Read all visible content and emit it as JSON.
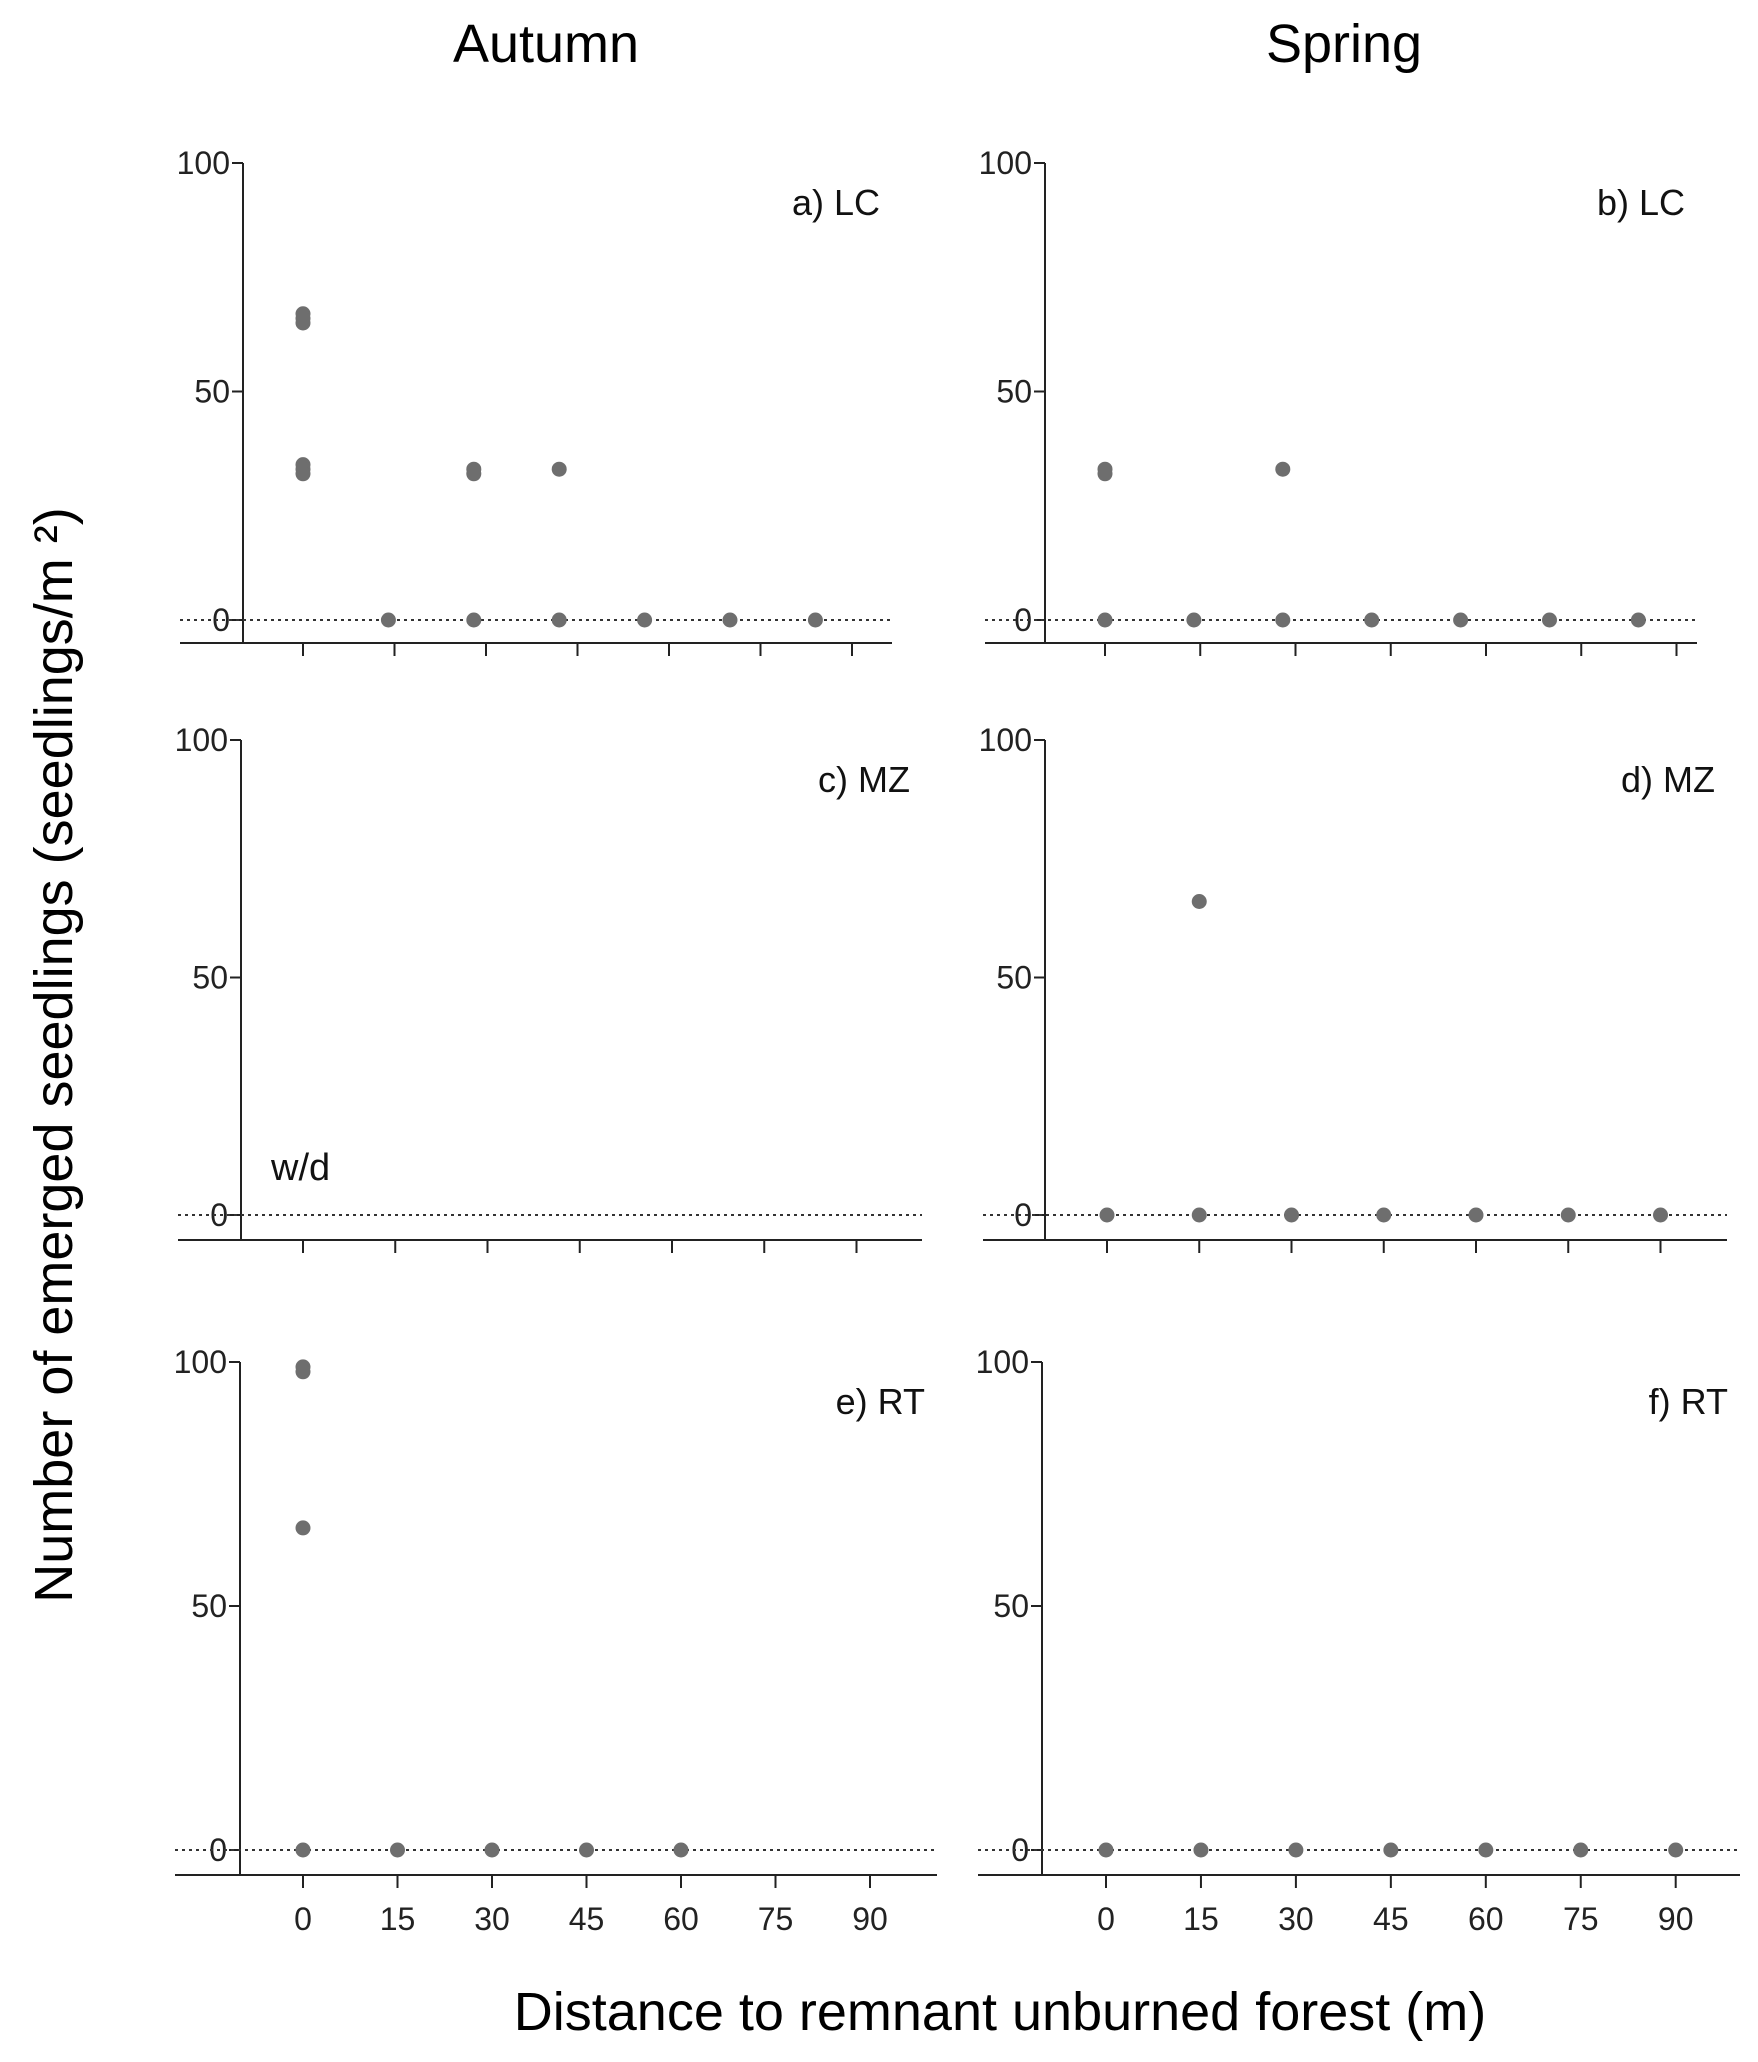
{
  "column_titles": [
    "Autumn",
    "Spring"
  ],
  "ylabel": "Number of emerged seedlings (seedlings/m ²)",
  "xlabel": "Distance to remnant unburned forest (m)",
  "colors": {
    "point": "#6e6e6e",
    "axis": "#222222",
    "zero_line": "#333333"
  },
  "chart_data": [
    {
      "type": "scatter",
      "panel_label": "a) LC",
      "x_ticks": [
        0,
        15,
        30,
        45,
        60,
        75,
        90
      ],
      "show_x_tick_labels": false,
      "y_ticks": [
        0,
        50,
        100
      ],
      "ylim": [
        0,
        100
      ],
      "zero_reference_line": true,
      "points": [
        [
          0,
          67
        ],
        [
          0,
          66
        ],
        [
          0,
          65
        ],
        [
          0,
          34
        ],
        [
          0,
          33
        ],
        [
          0,
          32
        ],
        [
          28,
          33
        ],
        [
          28,
          32
        ],
        [
          42,
          33
        ],
        [
          14,
          0
        ],
        [
          28,
          0
        ],
        [
          42,
          0
        ],
        [
          56,
          0
        ],
        [
          70,
          0
        ],
        [
          84,
          0
        ]
      ]
    },
    {
      "type": "scatter",
      "panel_label": "b) LC",
      "x_ticks": [
        0,
        15,
        30,
        45,
        60,
        75,
        90
      ],
      "show_x_tick_labels": false,
      "y_ticks": [
        0,
        50,
        100
      ],
      "ylim": [
        0,
        100
      ],
      "zero_reference_line": true,
      "points": [
        [
          0,
          33
        ],
        [
          0,
          32
        ],
        [
          28,
          33
        ],
        [
          0,
          0
        ],
        [
          14,
          0
        ],
        [
          28,
          0
        ],
        [
          42,
          0
        ],
        [
          56,
          0
        ],
        [
          70,
          0
        ],
        [
          84,
          0
        ]
      ]
    },
    {
      "type": "scatter",
      "panel_label": "c) MZ",
      "annotation": "w/d",
      "x_ticks": [
        0,
        15,
        30,
        45,
        60,
        75,
        90
      ],
      "show_x_tick_labels": false,
      "y_ticks": [
        0,
        50,
        100
      ],
      "ylim": [
        0,
        100
      ],
      "zero_reference_line": true,
      "points": []
    },
    {
      "type": "scatter",
      "panel_label": "d) MZ",
      "x_ticks": [
        0,
        15,
        30,
        45,
        60,
        75,
        90
      ],
      "show_x_tick_labels": false,
      "y_ticks": [
        0,
        50,
        100
      ],
      "ylim": [
        0,
        100
      ],
      "zero_reference_line": true,
      "points": [
        [
          15,
          66
        ],
        [
          0,
          0
        ],
        [
          15,
          0
        ],
        [
          30,
          0
        ],
        [
          45,
          0
        ],
        [
          60,
          0
        ],
        [
          75,
          0
        ],
        [
          90,
          0
        ]
      ]
    },
    {
      "type": "scatter",
      "panel_label": "e) RT",
      "x_ticks": [
        0,
        15,
        30,
        45,
        60,
        75,
        90
      ],
      "show_x_tick_labels": true,
      "y_ticks": [
        0,
        50,
        100
      ],
      "ylim": [
        0,
        100
      ],
      "zero_reference_line": true,
      "points": [
        [
          0,
          99
        ],
        [
          0,
          98
        ],
        [
          0,
          66
        ],
        [
          0,
          0
        ],
        [
          15,
          0
        ],
        [
          30,
          0
        ],
        [
          45,
          0
        ],
        [
          60,
          0
        ]
      ]
    },
    {
      "type": "scatter",
      "panel_label": "f) RT",
      "x_ticks": [
        0,
        15,
        30,
        45,
        60,
        75,
        90
      ],
      "show_x_tick_labels": true,
      "y_ticks": [
        0,
        50,
        100
      ],
      "ylim": [
        0,
        100
      ],
      "zero_reference_line": true,
      "points": [
        [
          0,
          0
        ],
        [
          15,
          0
        ],
        [
          30,
          0
        ],
        [
          45,
          0
        ],
        [
          60,
          0
        ],
        [
          75,
          0
        ],
        [
          90,
          0
        ]
      ]
    }
  ]
}
